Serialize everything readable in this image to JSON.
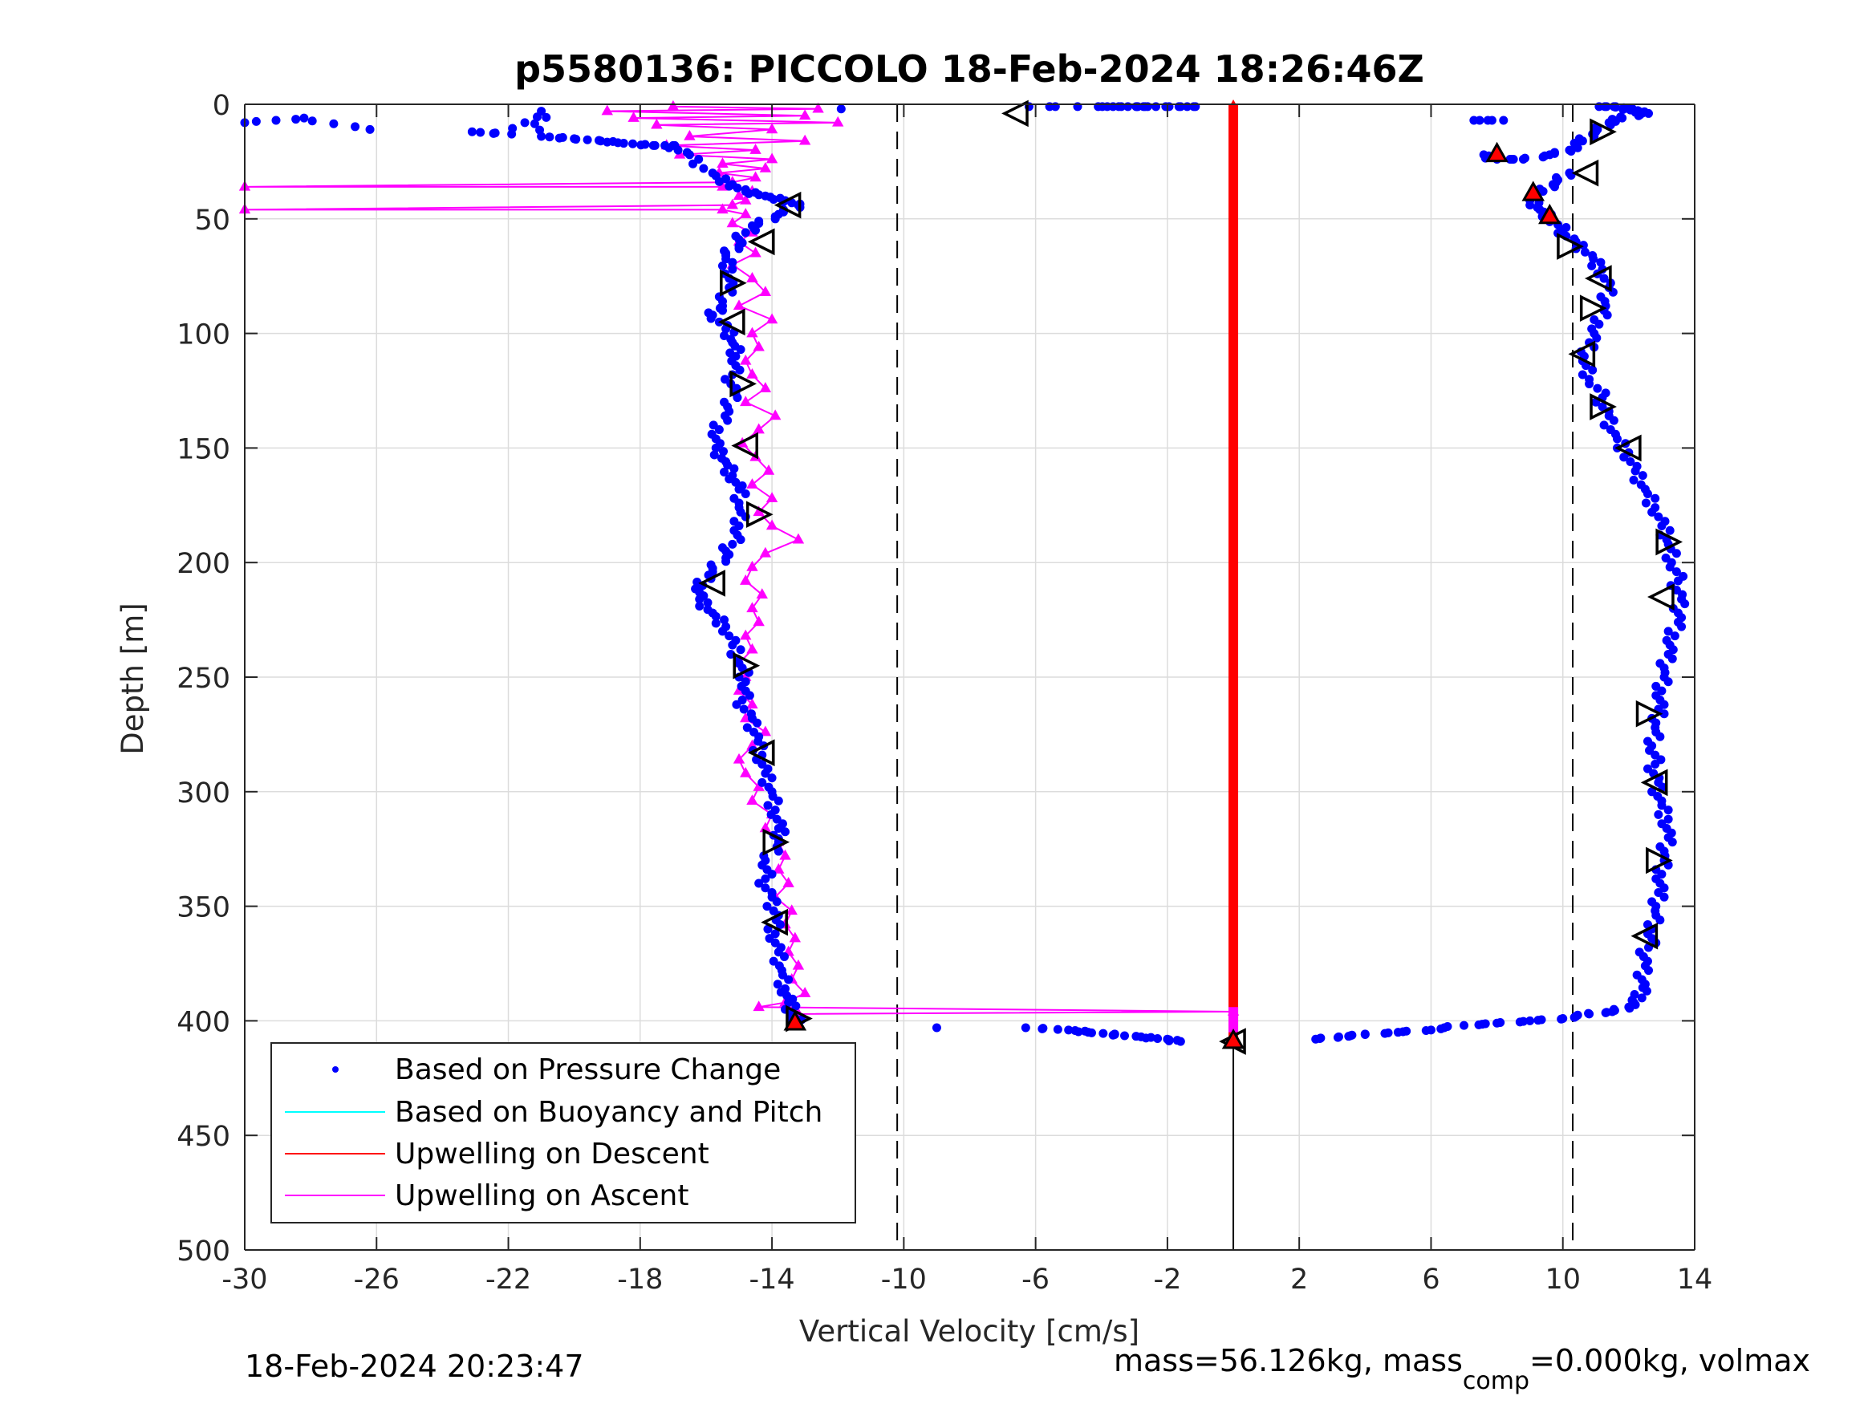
{
  "title": "p5580136: PICCOLO 18-Feb-2024 18:26:46Z",
  "footer": {
    "timestamp": "18-Feb-2024 20:23:47",
    "params_prefix": "mass=56.126kg, mass",
    "params_sub": "comp",
    "params_suffix": "=0.000kg, volmax"
  },
  "colors": {
    "pressure": "#0000ff",
    "buoyancy": "#00ffff",
    "descent": "#ff0000",
    "ascent": "#ff00ff",
    "grid": "#dcdcdc",
    "marker_edge": "#000000"
  },
  "chart_data": {
    "type": "scatter",
    "title": "p5580136: PICCOLO 18-Feb-2024 18:26:46Z",
    "xlabel": "Vertical Velocity [cm/s]",
    "ylabel": "Depth [m]",
    "xlim": [
      -30,
      14
    ],
    "ylim": [
      0,
      500
    ],
    "y_reversed": true,
    "grid": true,
    "x_ticks": [
      -30,
      -26,
      -22,
      -18,
      -14,
      -10,
      -6,
      -2,
      2,
      6,
      10,
      14
    ],
    "y_ticks": [
      0,
      50,
      100,
      150,
      200,
      250,
      300,
      350,
      400,
      450,
      500
    ],
    "reference_lines": [
      {
        "style": "dashed",
        "x": -10.2
      },
      {
        "style": "dashed",
        "x": 10.3
      },
      {
        "style": "solid",
        "x": 0,
        "from_depth": 398,
        "to_depth": 500
      }
    ],
    "legend": {
      "position": "bottom-left",
      "entries": [
        {
          "label": "Based on Pressure Change",
          "style": "dot",
          "color": "#0000ff"
        },
        {
          "label": "Based on Buoyancy and Pitch",
          "style": "line",
          "color": "#00ffff"
        },
        {
          "label": "Upwelling on Descent",
          "style": "line",
          "color": "#ff0000"
        },
        {
          "label": "Upwelling on Ascent",
          "style": "line",
          "color": "#ff00ff"
        }
      ]
    },
    "series": [
      {
        "name": "Based on Pressure Change",
        "kind": "dots",
        "points": [
          [
            -30.0,
            8
          ],
          [
            -28.2,
            6
          ],
          [
            -26.2,
            11
          ],
          [
            -23.1,
            12
          ],
          [
            -21.9,
            13
          ],
          [
            -21.0,
            3
          ],
          [
            -21.0,
            14
          ],
          [
            -20.0,
            15
          ],
          [
            -19.2,
            16
          ],
          [
            -18.5,
            17
          ],
          [
            -17.6,
            18
          ],
          [
            -17.0,
            18
          ],
          [
            -16.5,
            22
          ],
          [
            -15.8,
            30
          ],
          [
            -15.2,
            35
          ],
          [
            -14.8,
            38
          ],
          [
            -14.2,
            40
          ],
          [
            -13.6,
            42
          ],
          [
            -13.2,
            44
          ],
          [
            -13.8,
            48
          ],
          [
            -14.4,
            52
          ],
          [
            -14.8,
            56
          ],
          [
            -15.0,
            62
          ],
          [
            -15.4,
            66
          ],
          [
            -15.2,
            72
          ],
          [
            -15.3,
            80
          ],
          [
            -15.5,
            88
          ],
          [
            -15.8,
            92
          ],
          [
            -15.4,
            98
          ],
          [
            -15.2,
            104
          ],
          [
            -15.1,
            110
          ],
          [
            -15.2,
            118
          ],
          [
            -15.1,
            126
          ],
          [
            -15.3,
            134
          ],
          [
            -15.6,
            142
          ],
          [
            -15.7,
            150
          ],
          [
            -15.4,
            156
          ],
          [
            -15.2,
            162
          ],
          [
            -15.0,
            168
          ],
          [
            -15.0,
            176
          ],
          [
            -15.0,
            184
          ],
          [
            -15.2,
            192
          ],
          [
            -15.4,
            198
          ],
          [
            -15.8,
            204
          ],
          [
            -16.1,
            210
          ],
          [
            -16.2,
            216
          ],
          [
            -15.8,
            222
          ],
          [
            -15.4,
            228
          ],
          [
            -15.2,
            236
          ],
          [
            -15.0,
            244
          ],
          [
            -14.8,
            252
          ],
          [
            -14.9,
            260
          ],
          [
            -14.6,
            268
          ],
          [
            -14.4,
            276
          ],
          [
            -14.3,
            284
          ],
          [
            -14.2,
            292
          ],
          [
            -14.0,
            300
          ],
          [
            -13.9,
            308
          ],
          [
            -13.8,
            316
          ],
          [
            -13.8,
            322
          ],
          [
            -14.2,
            330
          ],
          [
            -14.2,
            338
          ],
          [
            -14.0,
            346
          ],
          [
            -13.8,
            354
          ],
          [
            -13.9,
            362
          ],
          [
            -13.8,
            370
          ],
          [
            -13.7,
            378
          ],
          [
            -13.6,
            386
          ],
          [
            -13.5,
            392
          ],
          [
            -13.4,
            398
          ],
          [
            -13.2,
            401
          ],
          [
            -11.9,
            2
          ],
          [
            -6.2,
            1
          ],
          [
            -4.1,
            1
          ],
          [
            -3.4,
            1
          ],
          [
            -2.9,
            1
          ],
          [
            -2.6,
            1
          ],
          [
            -1.6,
            1
          ],
          [
            -1.2,
            1
          ],
          [
            11.1,
            1
          ],
          [
            11.6,
            1
          ],
          [
            12.0,
            2
          ],
          [
            12.3,
            3
          ],
          [
            12.6,
            4
          ],
          [
            11.8,
            6
          ],
          [
            11.4,
            8
          ],
          [
            11.0,
            12
          ],
          [
            10.6,
            16
          ],
          [
            10.2,
            20
          ],
          [
            9.6,
            22
          ],
          [
            8.8,
            24
          ],
          [
            8.0,
            24
          ],
          [
            7.6,
            22
          ],
          [
            7.3,
            7
          ],
          [
            8.2,
            7
          ],
          [
            10.2,
            30
          ],
          [
            9.8,
            34
          ],
          [
            9.4,
            38
          ],
          [
            9.0,
            42
          ],
          [
            9.3,
            46
          ],
          [
            9.6,
            50
          ],
          [
            10.0,
            55
          ],
          [
            10.4,
            60
          ],
          [
            10.9,
            66
          ],
          [
            11.2,
            72
          ],
          [
            11.4,
            80
          ],
          [
            11.3,
            88
          ],
          [
            11.1,
            96
          ],
          [
            10.8,
            104
          ],
          [
            10.6,
            112
          ],
          [
            10.8,
            120
          ],
          [
            11.2,
            128
          ],
          [
            11.4,
            136
          ],
          [
            11.6,
            144
          ],
          [
            12.0,
            152
          ],
          [
            12.2,
            160
          ],
          [
            12.5,
            168
          ],
          [
            12.8,
            176
          ],
          [
            13.0,
            184
          ],
          [
            13.2,
            192
          ],
          [
            13.3,
            200
          ],
          [
            13.5,
            208
          ],
          [
            13.6,
            216
          ],
          [
            13.6,
            224
          ],
          [
            13.4,
            232
          ],
          [
            13.2,
            240
          ],
          [
            13.1,
            248
          ],
          [
            13.0,
            256
          ],
          [
            12.9,
            264
          ],
          [
            12.8,
            272
          ],
          [
            12.7,
            280
          ],
          [
            12.8,
            288
          ],
          [
            12.9,
            296
          ],
          [
            13.0,
            304
          ],
          [
            13.2,
            312
          ],
          [
            13.2,
            320
          ],
          [
            13.1,
            328
          ],
          [
            13.0,
            336
          ],
          [
            12.9,
            344
          ],
          [
            12.8,
            352
          ],
          [
            12.7,
            360
          ],
          [
            12.6,
            368
          ],
          [
            12.5,
            376
          ],
          [
            12.5,
            384
          ],
          [
            12.4,
            390
          ],
          [
            12.0,
            394
          ],
          [
            11.5,
            396
          ],
          [
            10.8,
            397
          ],
          [
            10.0,
            399
          ],
          [
            9.0,
            400
          ],
          [
            8.0,
            401
          ],
          [
            7.0,
            402
          ],
          [
            6.0,
            404
          ],
          [
            5.0,
            405
          ],
          [
            4.0,
            406
          ],
          [
            3.2,
            407
          ],
          [
            2.5,
            408
          ],
          [
            -9.0,
            403
          ],
          [
            -6.3,
            403
          ],
          [
            -5.0,
            404
          ],
          [
            -4.4,
            405
          ],
          [
            -3.6,
            406
          ],
          [
            -2.8,
            407
          ],
          [
            -2.0,
            408
          ],
          [
            -1.6,
            409
          ]
        ]
      },
      {
        "name": "Upwelling on Ascent",
        "kind": "triangle-line",
        "points": [
          [
            -17.0,
            1
          ],
          [
            -12.6,
            2
          ],
          [
            -19.0,
            3
          ],
          [
            -13.0,
            5
          ],
          [
            -18.2,
            6
          ],
          [
            -12.0,
            8
          ],
          [
            -17.5,
            9
          ],
          [
            -14.0,
            11
          ],
          [
            -16.5,
            14
          ],
          [
            -13.0,
            16
          ],
          [
            -17.2,
            18
          ],
          [
            -14.5,
            20
          ],
          [
            -16.8,
            22
          ],
          [
            -14.0,
            24
          ],
          [
            -15.5,
            26
          ],
          [
            -14.2,
            28
          ],
          [
            -15.6,
            30
          ],
          [
            -14.5,
            32
          ],
          [
            -15.2,
            34
          ],
          [
            -30.0,
            36
          ],
          [
            -15.5,
            36
          ],
          [
            -14.6,
            38
          ],
          [
            -15.0,
            40
          ],
          [
            -14.8,
            42
          ],
          [
            -15.2,
            44
          ],
          [
            -30.0,
            46
          ],
          [
            -15.5,
            46
          ],
          [
            -14.8,
            48
          ],
          [
            -15.2,
            52
          ],
          [
            -14.6,
            56
          ],
          [
            -15.0,
            60
          ],
          [
            -14.5,
            65
          ],
          [
            -15.2,
            70
          ],
          [
            -14.6,
            76
          ],
          [
            -14.2,
            82
          ],
          [
            -15.0,
            88
          ],
          [
            -14.0,
            94
          ],
          [
            -14.6,
            100
          ],
          [
            -14.4,
            106
          ],
          [
            -14.8,
            112
          ],
          [
            -14.6,
            118
          ],
          [
            -14.2,
            124
          ],
          [
            -14.8,
            130
          ],
          [
            -13.9,
            136
          ],
          [
            -14.4,
            142
          ],
          [
            -14.9,
            148
          ],
          [
            -14.5,
            154
          ],
          [
            -14.1,
            160
          ],
          [
            -14.6,
            166
          ],
          [
            -14.0,
            172
          ],
          [
            -14.4,
            178
          ],
          [
            -14.0,
            184
          ],
          [
            -13.2,
            190
          ],
          [
            -14.2,
            196
          ],
          [
            -14.6,
            202
          ],
          [
            -14.8,
            208
          ],
          [
            -14.3,
            214
          ],
          [
            -14.6,
            220
          ],
          [
            -14.4,
            226
          ],
          [
            -14.8,
            232
          ],
          [
            -14.6,
            238
          ],
          [
            -15.0,
            244
          ],
          [
            -14.8,
            250
          ],
          [
            -15.0,
            256
          ],
          [
            -14.6,
            262
          ],
          [
            -14.8,
            268
          ],
          [
            -14.2,
            274
          ],
          [
            -14.6,
            280
          ],
          [
            -15.0,
            286
          ],
          [
            -14.8,
            292
          ],
          [
            -14.4,
            298
          ],
          [
            -14.6,
            304
          ],
          [
            -14.0,
            310
          ],
          [
            -14.2,
            316
          ],
          [
            -13.8,
            322
          ],
          [
            -13.6,
            328
          ],
          [
            -13.8,
            334
          ],
          [
            -13.5,
            340
          ],
          [
            -13.9,
            346
          ],
          [
            -13.4,
            352
          ],
          [
            -13.6,
            358
          ],
          [
            -13.3,
            364
          ],
          [
            -13.5,
            370
          ],
          [
            -13.2,
            376
          ],
          [
            -13.4,
            382
          ],
          [
            -13.0,
            388
          ],
          [
            -13.6,
            392
          ],
          [
            -14.4,
            394
          ],
          [
            0.0,
            396
          ],
          [
            -13.2,
            397
          ]
        ]
      },
      {
        "name": "Upwelling on Descent",
        "kind": "triangle-line",
        "x_constant": 0.0,
        "depth_range": [
          0,
          410
        ]
      }
    ],
    "pitch_markers": [
      {
        "x": -6.6,
        "y": 4,
        "dir": "left"
      },
      {
        "x": -13.5,
        "y": 44,
        "dir": "left"
      },
      {
        "x": -14.3,
        "y": 60,
        "dir": "left"
      },
      {
        "x": -15.2,
        "y": 78,
        "dir": "right"
      },
      {
        "x": -15.2,
        "y": 95,
        "dir": "left"
      },
      {
        "x": -14.9,
        "y": 122,
        "dir": "right"
      },
      {
        "x": -14.8,
        "y": 149,
        "dir": "left"
      },
      {
        "x": -14.4,
        "y": 179,
        "dir": "right"
      },
      {
        "x": -15.8,
        "y": 209,
        "dir": "left"
      },
      {
        "x": -14.8,
        "y": 245,
        "dir": "right"
      },
      {
        "x": -14.3,
        "y": 283,
        "dir": "left"
      },
      {
        "x": -13.9,
        "y": 322,
        "dir": "right"
      },
      {
        "x": -13.9,
        "y": 357,
        "dir": "left"
      },
      {
        "x": -13.2,
        "y": 399,
        "dir": "right"
      },
      {
        "x": 0.0,
        "y": 409,
        "dir": "left"
      },
      {
        "x": 11.2,
        "y": 12,
        "dir": "right"
      },
      {
        "x": 10.7,
        "y": 30,
        "dir": "left"
      },
      {
        "x": 10.2,
        "y": 62,
        "dir": "right"
      },
      {
        "x": 11.1,
        "y": 76,
        "dir": "left"
      },
      {
        "x": 10.9,
        "y": 89,
        "dir": "right"
      },
      {
        "x": 10.6,
        "y": 109,
        "dir": "left"
      },
      {
        "x": 11.2,
        "y": 132,
        "dir": "right"
      },
      {
        "x": 12.0,
        "y": 150,
        "dir": "left"
      },
      {
        "x": 13.2,
        "y": 191,
        "dir": "right"
      },
      {
        "x": 13.0,
        "y": 215,
        "dir": "left"
      },
      {
        "x": 12.6,
        "y": 266,
        "dir": "right"
      },
      {
        "x": 12.8,
        "y": 296,
        "dir": "left"
      },
      {
        "x": 12.9,
        "y": 330,
        "dir": "right"
      },
      {
        "x": 12.5,
        "y": 363,
        "dir": "left"
      }
    ],
    "highlight_markers": [
      [
        8.0,
        22
      ],
      [
        9.1,
        39
      ],
      [
        9.6,
        49
      ],
      [
        -13.3,
        401
      ],
      [
        0.0,
        409
      ]
    ]
  }
}
